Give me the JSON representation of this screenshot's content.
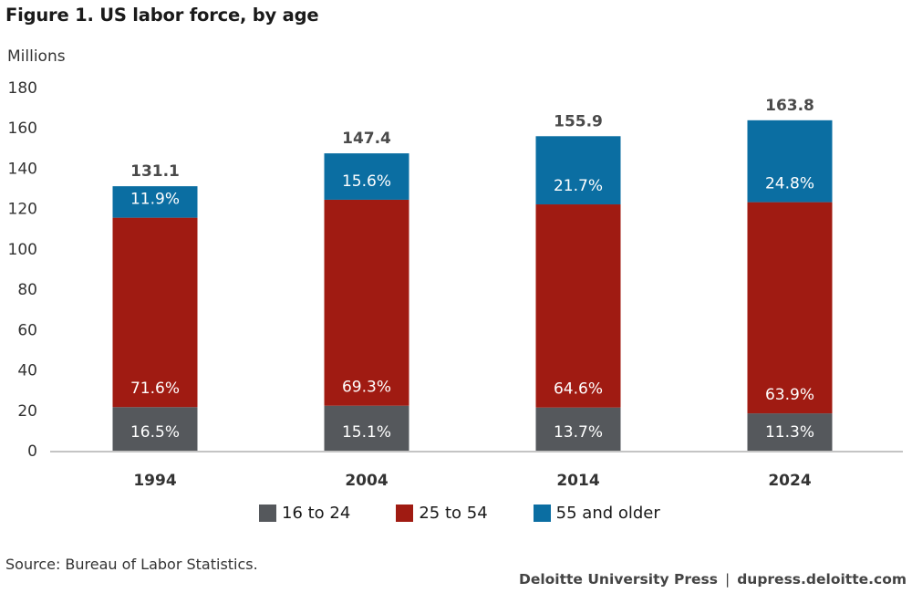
{
  "figure": {
    "title": "Figure 1. US labor force, by age",
    "source": "Source: Bureau of Labor Statistics.",
    "credit_publisher": "Deloitte University Press",
    "credit_separator": "|",
    "credit_url": "dupress.deloitte.com"
  },
  "chart_data": {
    "type": "bar",
    "stacked": true,
    "title": "Figure 1. US labor force, by age",
    "xlabel": "",
    "ylabel": "Millions",
    "ylim": [
      0,
      180
    ],
    "yticks": [
      0,
      20,
      40,
      60,
      80,
      100,
      120,
      140,
      160,
      180
    ],
    "grid": false,
    "legend_position": "bottom-center",
    "categories": [
      "1994",
      "2004",
      "2014",
      "2024"
    ],
    "totals": [
      131.1,
      147.4,
      155.9,
      163.8
    ],
    "total_labels": [
      "131.1",
      "147.4",
      "155.9",
      "163.8"
    ],
    "series": [
      {
        "name": "16 to 24",
        "color": "#55585c",
        "share_percent": [
          16.5,
          15.1,
          13.7,
          11.3
        ],
        "labels": [
          "16.5%",
          "15.1%",
          "13.7%",
          "11.3%"
        ],
        "values": [
          21.6,
          22.3,
          21.4,
          18.5
        ]
      },
      {
        "name": "25 to 54",
        "color": "#a01b12",
        "share_percent": [
          71.6,
          69.3,
          64.6,
          63.9
        ],
        "labels": [
          "71.6%",
          "69.3%",
          "64.6%",
          "63.9%"
        ],
        "values": [
          93.9,
          102.1,
          100.7,
          104.7
        ]
      },
      {
        "name": "55 and older",
        "color": "#0b6ea2",
        "share_percent": [
          11.9,
          15.6,
          21.7,
          24.8
        ],
        "labels": [
          "11.9%",
          "15.6%",
          "21.7%",
          "24.8%"
        ],
        "values": [
          15.6,
          23.0,
          33.8,
          40.6
        ]
      }
    ],
    "axis_color": "#c4c4c4"
  }
}
